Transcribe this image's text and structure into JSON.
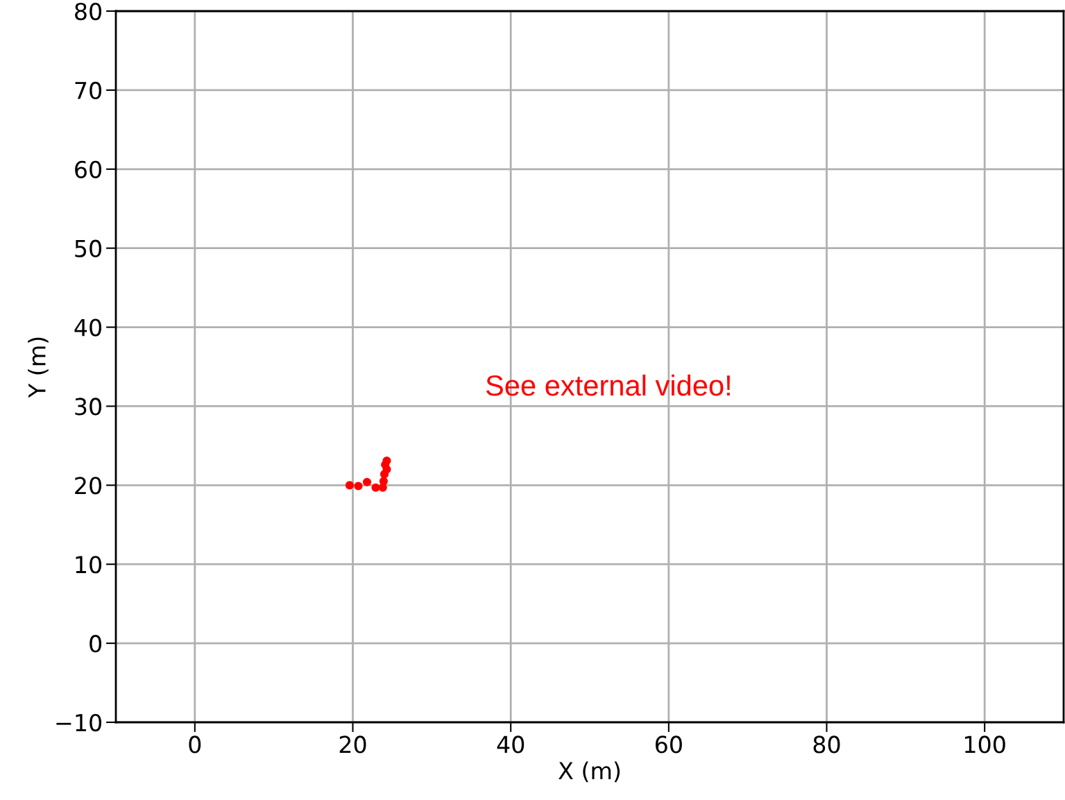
{
  "chart_data": {
    "type": "scatter",
    "xlabel": "X (m)",
    "ylabel": "Y (m)",
    "xlim": [
      -10,
      110
    ],
    "ylim": [
      -10,
      80
    ],
    "xticks": [
      0,
      20,
      40,
      60,
      80,
      100
    ],
    "yticks": [
      {
        "value": -10,
        "label": "−10"
      },
      0,
      10,
      20,
      30,
      40,
      50,
      60,
      70,
      80
    ],
    "grid": true,
    "marker": "circle",
    "series": [
      {
        "color": "#ff0000",
        "x": [
          19.6,
          20.7,
          21.8,
          22.9,
          23.8,
          23.9,
          24.0,
          24.3,
          24.1,
          24.3
        ],
        "values": [
          20.0,
          19.9,
          20.4,
          19.7,
          19.7,
          20.5,
          21.4,
          22.0,
          22.6,
          23.1
        ]
      }
    ],
    "annotations": [
      "See external video!"
    ]
  }
}
